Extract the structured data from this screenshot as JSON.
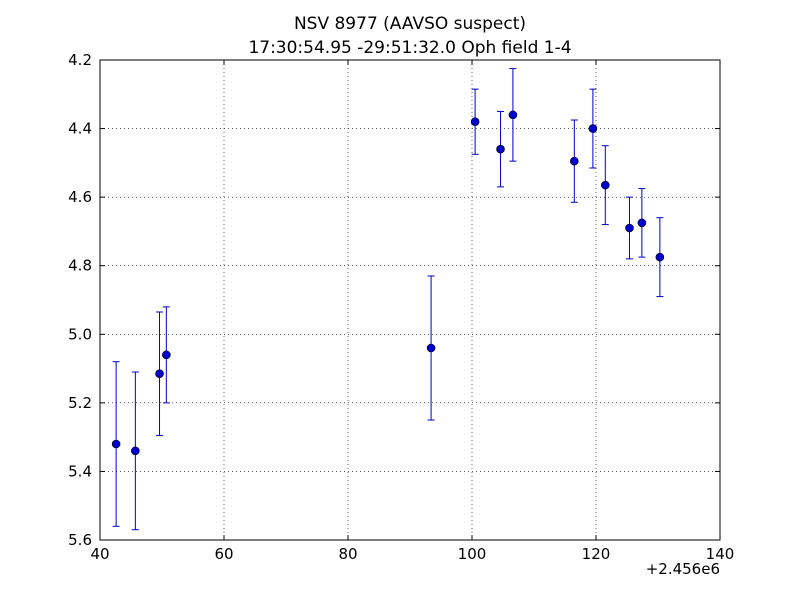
{
  "chart_data": {
    "type": "scatter",
    "title_line1": "NSV 8977  (AAVSO suspect)",
    "title_line2": "17:30:54.95 -29:51:32.0 Oph field 1-4",
    "xlabel": "",
    "ylabel": "",
    "x_offset_label": "+2.456e6",
    "xlim": [
      40,
      140
    ],
    "ylim": [
      5.6,
      4.2
    ],
    "y_inverted": true,
    "grid": true,
    "x_ticks": [
      40,
      60,
      80,
      100,
      120,
      140
    ],
    "x_tick_labels": [
      "40",
      "60",
      "80",
      "100",
      "120",
      "140"
    ],
    "y_ticks": [
      4.2,
      4.4,
      4.6,
      4.8,
      5.0,
      5.2,
      5.4,
      5.6
    ],
    "y_tick_labels": [
      "4.2",
      "4.4",
      "4.6",
      "4.8",
      "5.0",
      "5.2",
      "5.4",
      "5.6"
    ],
    "marker_color": "#0000cc",
    "errorbar_color": "#0000cc",
    "points": [
      {
        "x": 42.6,
        "y": 5.32,
        "err": 0.24
      },
      {
        "x": 45.7,
        "y": 5.34,
        "err": 0.23
      },
      {
        "x": 49.6,
        "y": 5.115,
        "err": 0.18
      },
      {
        "x": 50.7,
        "y": 5.06,
        "err": 0.14
      },
      {
        "x": 93.4,
        "y": 5.04,
        "err": 0.21
      },
      {
        "x": 100.5,
        "y": 4.38,
        "err": 0.095
      },
      {
        "x": 104.6,
        "y": 4.46,
        "err": 0.11
      },
      {
        "x": 106.6,
        "y": 4.36,
        "err": 0.135
      },
      {
        "x": 116.5,
        "y": 4.495,
        "err": 0.12
      },
      {
        "x": 119.5,
        "y": 4.4,
        "err": 0.115
      },
      {
        "x": 121.5,
        "y": 4.565,
        "err": 0.115
      },
      {
        "x": 125.4,
        "y": 4.69,
        "err": 0.09
      },
      {
        "x": 127.4,
        "y": 4.675,
        "err": 0.1
      },
      {
        "x": 130.3,
        "y": 4.775,
        "err": 0.115
      }
    ]
  }
}
